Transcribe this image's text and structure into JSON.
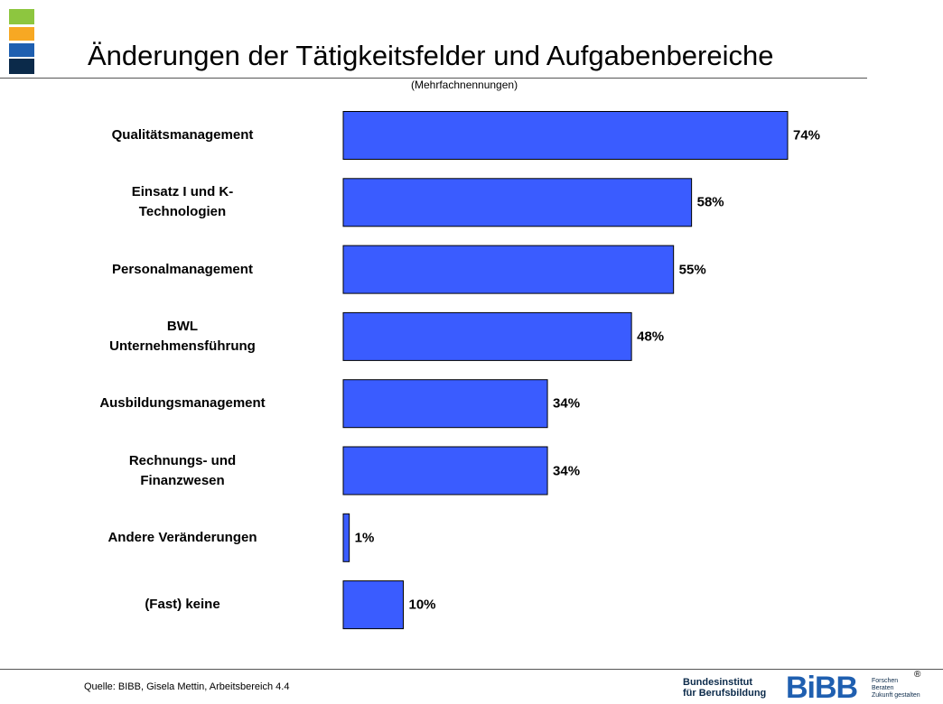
{
  "chart_data": {
    "type": "hbar",
    "title": "Änderungen der Tätigkeitsfelder und Aufgabenbereiche",
    "subtitle": "(Mehrfachnennungen)",
    "categories": [
      "Qualitätsmanagement",
      "Einsatz I und K-\nTechnologien",
      "Personalmanagement",
      "BWL\nUnternehmensführung",
      "Ausbildungsmanagement",
      "Rechnungs- und\nFinanzwesen",
      "Andere Veränderungen",
      "(Fast) keine"
    ],
    "values": [
      74,
      58,
      55,
      48,
      34,
      34,
      1,
      10
    ],
    "value_labels": [
      "74%",
      "58%",
      "55%",
      "48%",
      "34%",
      "34%",
      "1%",
      "10%"
    ],
    "color": "#3a5cff"
  },
  "footer": {
    "source": "Quelle: BIBB, Gisela Mettin, Arbeitsbereich 4.4",
    "institute": "Bundesinstitut\nfür Berufsbildung",
    "logo": "BiBB",
    "slogan": "Forschen\nBeraten\nZukunft gestalten",
    "registered": "®"
  }
}
